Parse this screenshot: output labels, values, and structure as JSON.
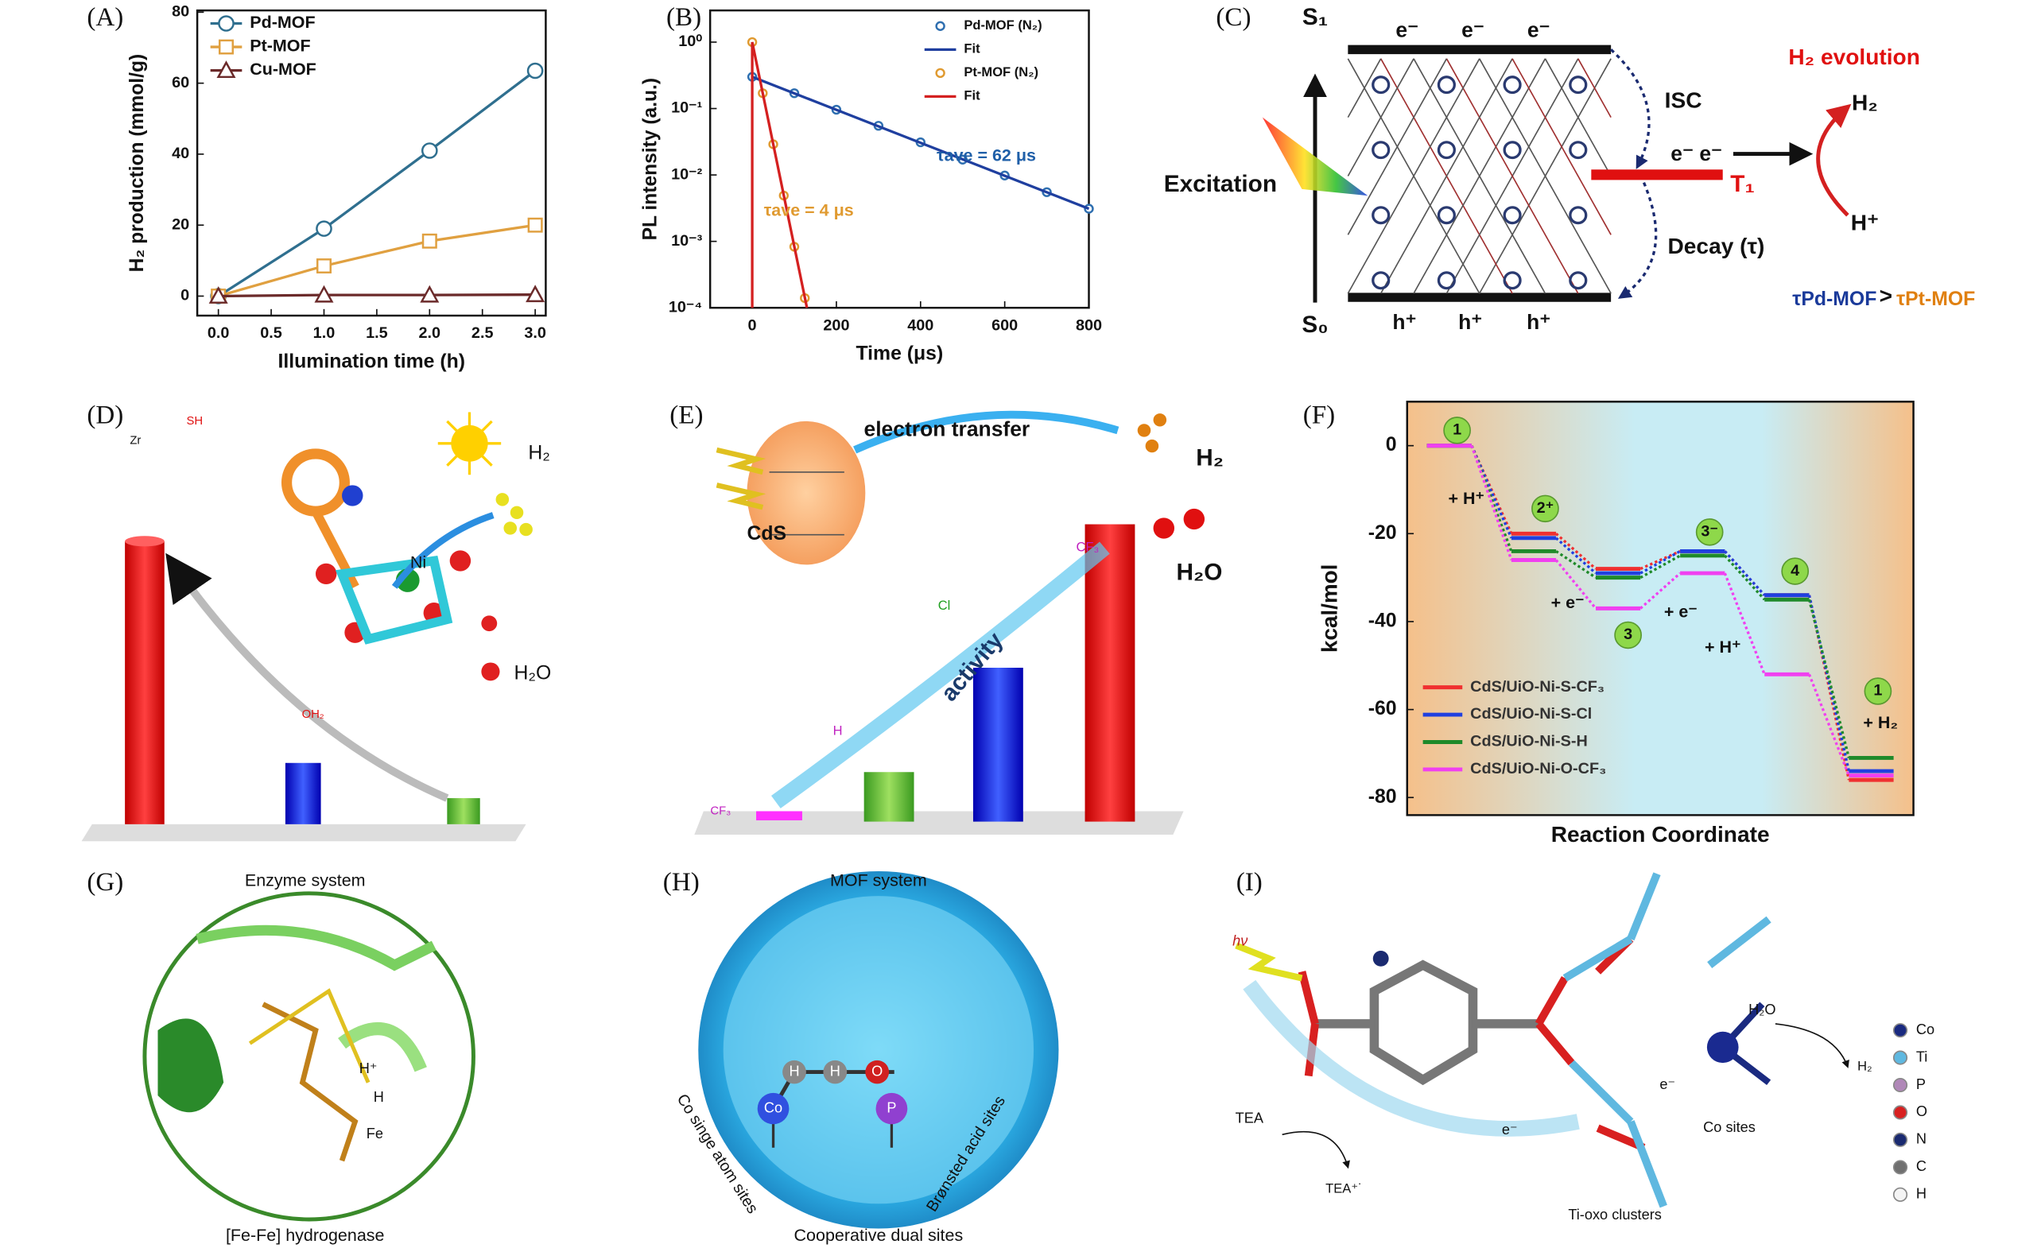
{
  "chart_data": [
    {
      "type": "line",
      "panel_label": "(A)",
      "xlabel": "Illumination time (h)",
      "ylabel": "H₂ production (mmol/g)",
      "x": [
        0,
        1,
        2,
        3
      ],
      "series": [
        {
          "name": "Pd-MOF",
          "color": "#2f6f8f",
          "marker": "circle",
          "values": [
            0,
            19,
            41,
            63.5
          ]
        },
        {
          "name": "Pt-MOF",
          "color": "#e0a040",
          "marker": "square",
          "values": [
            0,
            8.5,
            15.5,
            20
          ]
        },
        {
          "name": "Cu-MOF",
          "color": "#6b2a2a",
          "marker": "triangle",
          "values": [
            0,
            0.3,
            0.3,
            0.4
          ]
        }
      ],
      "xlim": [
        -0.2,
        3.1
      ],
      "ylim": [
        -5.5,
        80.5
      ],
      "xticks": [
        {
          "value": 0,
          "label": "0.0"
        },
        0.5,
        {
          "value": 1,
          "label": "1.0"
        },
        1.5,
        {
          "value": 2,
          "label": "2.0"
        },
        2.5,
        {
          "value": 3,
          "label": "3.0"
        }
      ],
      "yticks": [
        0,
        20,
        40,
        60,
        80
      ],
      "legend": "upper left"
    },
    {
      "type": "line",
      "panel_label": "(B)",
      "xlabel": "Time (μs)",
      "ylabel": "PL intensity (a.u.)",
      "ylog": true,
      "series": [
        {
          "name": "Pd-MOF (N₂)",
          "color": "#2f6fb0",
          "mode": "scatter",
          "x": [
            0,
            100,
            200,
            300,
            400,
            500,
            600,
            700,
            800
          ],
          "values": [
            0.3,
            0.17,
            0.096,
            0.055,
            0.031,
            0.017,
            0.0098,
            0.0055,
            0.0031
          ]
        },
        {
          "name": "Fit",
          "color": "#1f3f9f",
          "mode": "line",
          "x": [
            0,
            800
          ],
          "values": [
            0.3,
            0.0031
          ]
        },
        {
          "name": "Pt-MOF (N₂)",
          "color": "#e09a30",
          "mode": "scatter",
          "x": [
            0,
            25,
            50,
            75,
            100,
            125
          ],
          "values": [
            1,
            0.17,
            0.029,
            0.0049,
            0.00083,
            0.00014
          ]
        },
        {
          "name": "Fit",
          "color": "#d42020",
          "mode": "line",
          "x": [
            0,
            0,
            130
          ],
          "values": [
            0.0001,
            1,
            0.0001
          ]
        }
      ],
      "xlim": [
        -100,
        800
      ],
      "ylim": [
        0.0001,
        3
      ],
      "xticks": [
        0,
        200,
        400,
        600,
        800
      ],
      "yticks": [
        {
          "value": 0.0001,
          "label": "10⁻⁴"
        },
        {
          "value": 0.001,
          "label": "10⁻³"
        },
        {
          "value": 0.01,
          "label": "10⁻²"
        },
        {
          "value": 0.1,
          "label": "10⁻¹"
        },
        {
          "value": 1,
          "label": "10⁰"
        }
      ],
      "legend": "upper right",
      "annotations": [
        {
          "text": "τave = 62 μs",
          "color": "#1f5fa8"
        },
        {
          "text": "τave = 4 μs",
          "color": "#e09a30"
        }
      ]
    },
    {
      "type": "energy",
      "panel_label": "(F)",
      "xlabel": "Reaction Coordinate",
      "ylabel": "kcal/mol",
      "categories": [
        null,
        null,
        null,
        null,
        null,
        null
      ],
      "series": [
        {
          "name": "CdS/UiO-Ni-S-CF₃",
          "color": "#f03030",
          "values": [
            0,
            -20,
            -28,
            -24,
            -34,
            -76
          ]
        },
        {
          "name": "CdS/UiO-Ni-S-Cl",
          "color": "#2040e0",
          "values": [
            0,
            -21,
            -29,
            -24,
            -34,
            -74
          ]
        },
        {
          "name": "CdS/UiO-Ni-S-H",
          "color": "#1f8a2a",
          "values": [
            0,
            -24,
            -30,
            -25,
            -35,
            -71
          ]
        },
        {
          "name": "CdS/UiO-Ni-O-CF₃",
          "color": "#f040f0",
          "values": [
            0,
            -26,
            -37,
            -29,
            -52,
            -75
          ]
        }
      ],
      "ylim": [
        -84,
        10
      ],
      "yticks": [
        0,
        -20,
        -40,
        -60,
        -80
      ],
      "legend": "lower left",
      "state_labels": [
        "1",
        "2⁺",
        "3",
        "3⁻",
        "4",
        "1"
      ],
      "step_labels": [
        "+ H⁺",
        "+ e⁻",
        "+ e⁻",
        "+ H⁺",
        "+ H₂"
      ]
    }
  ],
  "panels": {
    "C": {
      "label": "(C)",
      "texts": [
        "S₁",
        "S₀",
        "e⁻",
        "e⁻",
        "e⁻",
        "h⁺",
        "h⁺",
        "h⁺",
        "Excitation",
        "ISC",
        "Decay (τ)",
        "e⁻ e⁻",
        "T₁",
        "H₂ evolution",
        "H₂",
        "H⁺",
        "τPd-MOF",
        ">",
        "τPt-MOF"
      ]
    },
    "D": {
      "label": "(D)",
      "texts": [
        "H₂",
        "H₂O",
        "Ni",
        "Zr",
        "SH",
        "OH₂"
      ]
    },
    "E": {
      "label": "(E)",
      "texts": [
        "electron transfer",
        "CdS",
        "H₂",
        "H₂O",
        "activity",
        "CF₃",
        "Cl",
        "H",
        "CF₃"
      ]
    },
    "G": {
      "label": "(G)",
      "texts": [
        "Enzyme system",
        "[Fe-Fe] hydrogenase",
        "H⁺",
        "H",
        "Fe"
      ]
    },
    "H": {
      "label": "(H)",
      "texts": [
        "MOF system",
        "Cooperative dual sites",
        "Co singe atom sites",
        "Brønsted acid sites",
        "H",
        "H",
        "O",
        "Co",
        "P"
      ]
    },
    "I": {
      "label": "(I)",
      "texts": [
        "hν",
        "H₂O",
        "H₂",
        "TEA",
        "TEA⁺˙",
        "e⁻",
        "e⁻",
        "Ti-oxo clusters",
        "Co sites"
      ],
      "legend": [
        {
          "name": "Co",
          "color": "#1a2a80"
        },
        {
          "name": "Ti",
          "color": "#5fb8e0"
        },
        {
          "name": "P",
          "color": "#b088b8"
        },
        {
          "name": "O",
          "color": "#d82020"
        },
        {
          "name": "N",
          "color": "#1a2a70"
        },
        {
          "name": "C",
          "color": "#707070"
        },
        {
          "name": "H",
          "color": "#f4f4f4"
        }
      ]
    }
  }
}
